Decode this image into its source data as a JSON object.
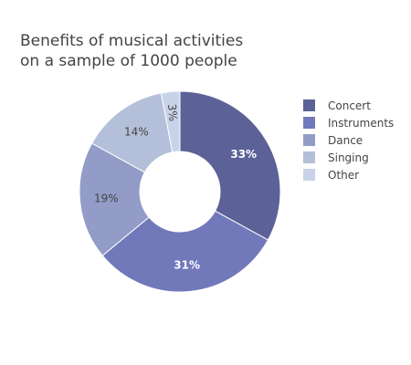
{
  "chart_data": {
    "type": "pie",
    "hole": true,
    "title_lines": [
      "Benefits of musical activities",
      "on a sample of 1000 people"
    ],
    "categories": [
      "Concert",
      "Instruments",
      "Dance",
      "Singing",
      "Other"
    ],
    "values": [
      33,
      31,
      19,
      14,
      3
    ],
    "labels": [
      "33%",
      "31%",
      "19%",
      "14%",
      "3%"
    ],
    "colors": [
      "#5c6297",
      "#7179bb",
      "#929cc7",
      "#b4c0d9",
      "#c8d3ea"
    ],
    "label_colors": [
      "#ffffff",
      "#ffffff",
      "#444444",
      "#444444",
      "#444444"
    ],
    "legend_placement": "right",
    "sort": "descending",
    "direction": "clockwise",
    "start": "top"
  }
}
